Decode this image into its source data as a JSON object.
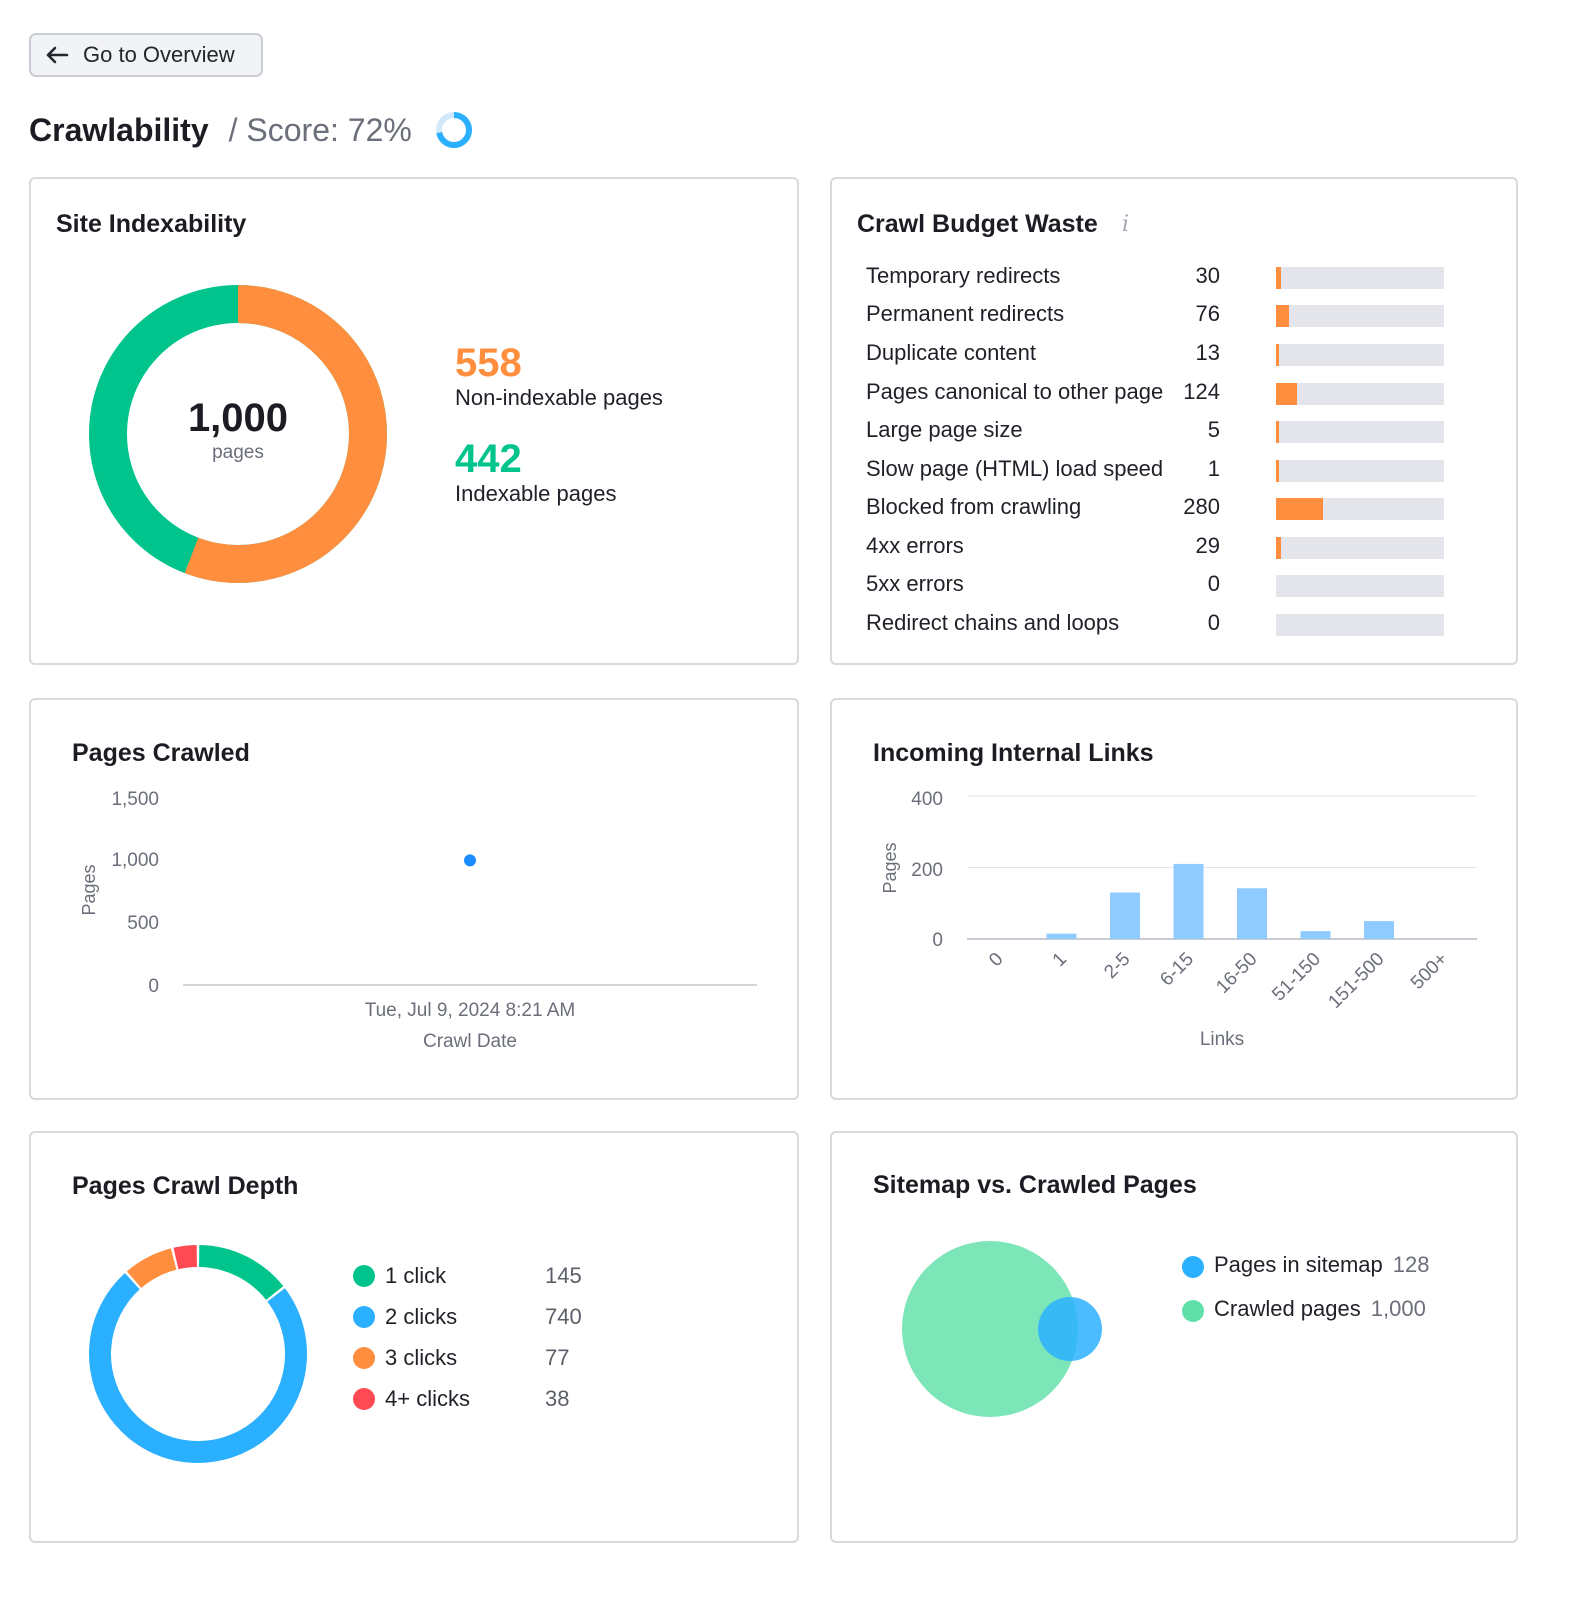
{
  "nav": {
    "back_label": "Go to Overview"
  },
  "header": {
    "title": "Crawlability",
    "score_text": "/ Score: 72%",
    "score_value": 72
  },
  "site_indexability": {
    "title": "Site Indexability",
    "total": "1,000",
    "total_label": "pages",
    "non_indexable_value": "558",
    "non_indexable_label": "Non-indexable pages",
    "indexable_value": "442",
    "indexable_label": "Indexable pages",
    "colors": {
      "non_indexable": "#ff8f3e",
      "indexable": "#00c48c"
    }
  },
  "crawl_budget_waste": {
    "title": "Crawl Budget Waste",
    "info_icon": "i",
    "max": 1000,
    "rows": [
      {
        "label": "Temporary redirects",
        "value": "30",
        "num": 30
      },
      {
        "label": "Permanent redirects",
        "value": "76",
        "num": 76
      },
      {
        "label": "Duplicate content",
        "value": "13",
        "num": 13
      },
      {
        "label": "Pages canonical to other page",
        "value": "124",
        "num": 124
      },
      {
        "label": "Large page size",
        "value": "5",
        "num": 5
      },
      {
        "label": "Slow page (HTML) load speed",
        "value": "1",
        "num": 1
      },
      {
        "label": "Blocked from crawling",
        "value": "280",
        "num": 280
      },
      {
        "label": "4xx errors",
        "value": "29",
        "num": 29
      },
      {
        "label": "5xx errors",
        "value": "0",
        "num": 0
      },
      {
        "label": "Redirect chains and loops",
        "value": "0",
        "num": 0
      }
    ]
  },
  "pages_crawled": {
    "title": "Pages Crawled",
    "chart_data": {
      "type": "scatter",
      "ylabel": "Pages",
      "xlabel": "Crawl Date",
      "y_ticks": [
        "1,500",
        "1,000",
        "500",
        "0"
      ],
      "ylim": [
        0,
        1500
      ],
      "points": [
        {
          "x": "Tue, Jul 9, 2024 8:21 AM",
          "y": 1000
        }
      ],
      "color": "#1a8cff"
    }
  },
  "incoming_internal_links": {
    "title": "Incoming Internal Links",
    "chart_data": {
      "type": "bar",
      "ylabel": "Pages",
      "xlabel": "Links",
      "y_ticks": [
        "400",
        "200",
        "0"
      ],
      "ylim": [
        0,
        400
      ],
      "categories": [
        "0",
        "1",
        "2-5",
        "6-15",
        "16-50",
        "51-150",
        "151-500",
        "500+"
      ],
      "values": [
        0,
        15,
        130,
        210,
        142,
        22,
        50,
        0
      ],
      "color": "#8fcbff"
    }
  },
  "pages_crawl_depth": {
    "title": "Pages Crawl Depth",
    "chart_data": {
      "type": "pie",
      "items": [
        {
          "label": "1 click",
          "value": "145",
          "num": 145,
          "color": "#00c48c"
        },
        {
          "label": "2 clicks",
          "value": "740",
          "num": 740,
          "color": "#2bb0ff"
        },
        {
          "label": "3 clicks",
          "value": "77",
          "num": 77,
          "color": "#ff8f3e"
        },
        {
          "label": "4+ clicks",
          "value": "38",
          "num": 38,
          "color": "#ff4953"
        }
      ]
    }
  },
  "sitemap_vs_crawled": {
    "title": "Sitemap vs. Crawled Pages",
    "items": [
      {
        "label": "Pages in sitemap",
        "value": "128",
        "color": "#2bb0ff"
      },
      {
        "label": "Crawled pages",
        "value": "1,000",
        "color": "#5fe0a8"
      }
    ]
  }
}
